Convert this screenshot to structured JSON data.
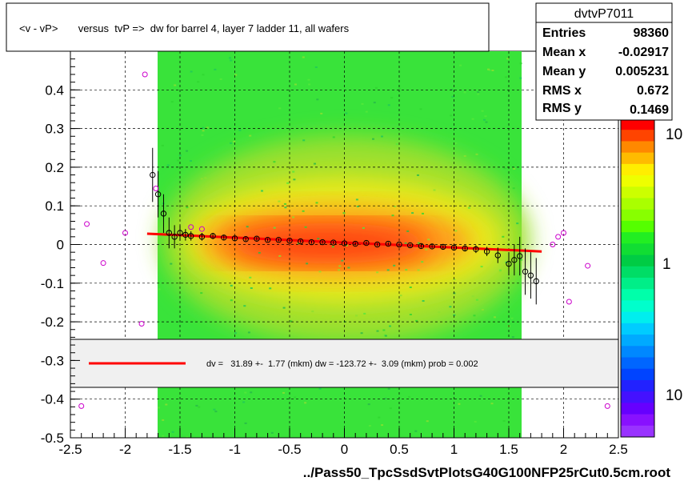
{
  "chart_data": {
    "type": "scatter",
    "title": "<v - vP>       versus  tvP =>  dw for barrel 4, layer 7 ladder 11, all wafers",
    "xlabel": "../Pass50_TpcSsdSvtPlotsG40G100NFP25rCut0.5cm.root",
    "ylabel": "",
    "xlim": [
      -2.5,
      2.5
    ],
    "ylim": [
      -0.5,
      0.5
    ],
    "x_ticks": [
      "-2.5",
      "-2",
      "-1.5",
      "-1",
      "-0.5",
      "0",
      "0.5",
      "1",
      "1.5",
      "2",
      "2.5"
    ],
    "y_ticks": [
      "-0.5",
      "-0.4",
      "-0.3",
      "-0.2",
      "-0.1",
      "0",
      "0.1",
      "0.2",
      "0.3",
      "0.4"
    ],
    "grid": true,
    "colorbar": {
      "scale": "log",
      "labels": [
        "10",
        "1",
        "10"
      ]
    },
    "stats": {
      "title": "dvtvP7011",
      "rows": [
        {
          "label": "Entries",
          "value": "98360"
        },
        {
          "label": "Mean x",
          "value": "-0.02917"
        },
        {
          "label": "Mean y",
          "value": "0.005231"
        },
        {
          "label": "RMS x",
          "value": "0.672"
        },
        {
          "label": "RMS y",
          "value": "0.1469"
        }
      ]
    },
    "fit_legend": "dv =   31.89 +-  1.77 (mkm) dw = -123.72 +-  3.09 (mkm) prob = 0.002",
    "fit_line": {
      "x": [
        -1.8,
        1.8
      ],
      "y": [
        0.028,
        -0.018
      ]
    },
    "profile_points": {
      "x": [
        -1.75,
        -1.7,
        -1.65,
        -1.6,
        -1.55,
        -1.5,
        -1.45,
        -1.4,
        -1.3,
        -1.2,
        -1.1,
        -1.0,
        -0.9,
        -0.8,
        -0.7,
        -0.6,
        -0.5,
        -0.4,
        -0.3,
        -0.2,
        -0.1,
        0.0,
        0.1,
        0.2,
        0.3,
        0.4,
        0.5,
        0.6,
        0.7,
        0.8,
        0.9,
        1.0,
        1.1,
        1.2,
        1.3,
        1.4,
        1.5,
        1.55,
        1.6,
        1.65,
        1.7,
        1.75
      ],
      "y": [
        0.18,
        0.13,
        0.08,
        0.03,
        0.02,
        0.03,
        0.025,
        0.022,
        0.02,
        0.022,
        0.018,
        0.016,
        0.014,
        0.015,
        0.012,
        0.012,
        0.01,
        0.008,
        0.006,
        0.006,
        0.005,
        0.003,
        0.002,
        0.004,
        0.0,
        0.002,
        0.0,
        -0.002,
        -0.004,
        -0.005,
        -0.006,
        -0.008,
        -0.01,
        -0.012,
        -0.018,
        -0.028,
        -0.05,
        -0.04,
        -0.03,
        -0.07,
        -0.08,
        -0.095
      ],
      "err": [
        0.07,
        0.06,
        0.05,
        0.04,
        0.03,
        0.02,
        0.015,
        0.012,
        0.01,
        0.008,
        0.007,
        0.006,
        0.005,
        0.005,
        0.004,
        0.004,
        0.004,
        0.004,
        0.004,
        0.004,
        0.004,
        0.004,
        0.004,
        0.004,
        0.004,
        0.004,
        0.004,
        0.004,
        0.005,
        0.005,
        0.006,
        0.007,
        0.008,
        0.01,
        0.012,
        0.02,
        0.03,
        0.04,
        0.05,
        0.06,
        0.06,
        0.06
      ]
    },
    "outlier_points": {
      "x": [
        -2.35,
        -2.2,
        -2.0,
        -1.85,
        -1.82,
        -1.72,
        -1.4,
        -1.3,
        1.9,
        1.95,
        2.0,
        2.05,
        2.22,
        2.4,
        -2.4
      ],
      "y": [
        0.053,
        -0.048,
        0.03,
        -0.205,
        0.44,
        0.145,
        0.045,
        0.04,
        0.0,
        0.02,
        0.03,
        -0.148,
        -0.055,
        -0.418,
        -0.418
      ]
    },
    "colors": {
      "fit_line": "#ff0000",
      "profile_marker": "#000000",
      "outlier_marker": "#cc00cc",
      "grid": "#000000",
      "legend_bg": "#f0f0f0"
    }
  }
}
